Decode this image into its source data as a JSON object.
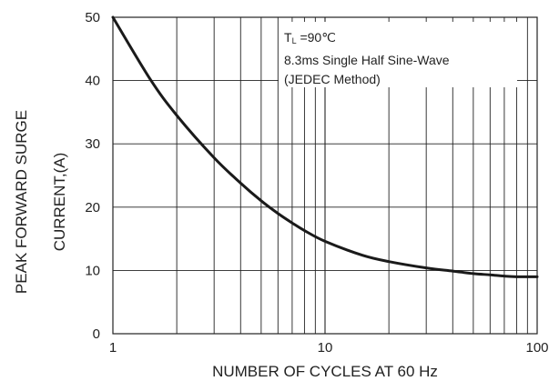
{
  "chart_data": {
    "type": "line",
    "title": "",
    "xlabel": "NUMBER OF CYCLES AT 60 Hz",
    "ylabel_lines": [
      "PEAK FORWARD SURGE",
      "CURRENT,(A)"
    ],
    "x_scale": "log",
    "xlim": [
      1,
      100
    ],
    "ylim": [
      0,
      50
    ],
    "x_ticks": [
      1,
      10,
      100
    ],
    "x_tick_labels": [
      "1",
      "10",
      "100"
    ],
    "y_ticks": [
      0,
      10,
      20,
      30,
      40,
      50
    ],
    "y_tick_labels": [
      "0",
      "10",
      "20",
      "30",
      "40",
      "50"
    ],
    "grid": true,
    "legend": "none",
    "series": [
      {
        "color": "#1a1a1a",
        "x": [
          1,
          1.5,
          2,
          3,
          4,
          5,
          6,
          7,
          8,
          10,
          15,
          20,
          30,
          40,
          50,
          60,
          70,
          80,
          100
        ],
        "y": [
          50,
          40.2,
          34.5,
          27.8,
          23.8,
          21,
          19,
          17.5,
          16.3,
          14.6,
          12.4,
          11.4,
          10.4,
          9.9,
          9.5,
          9.3,
          9.1,
          9.0,
          9.0
        ]
      }
    ],
    "annotation": {
      "line1_main": "T",
      "line1_sub": "L",
      "line1_rest": " =90℃",
      "line2": "8.3ms Single Half Sine-Wave",
      "line3": "(JEDEC Method)"
    }
  }
}
